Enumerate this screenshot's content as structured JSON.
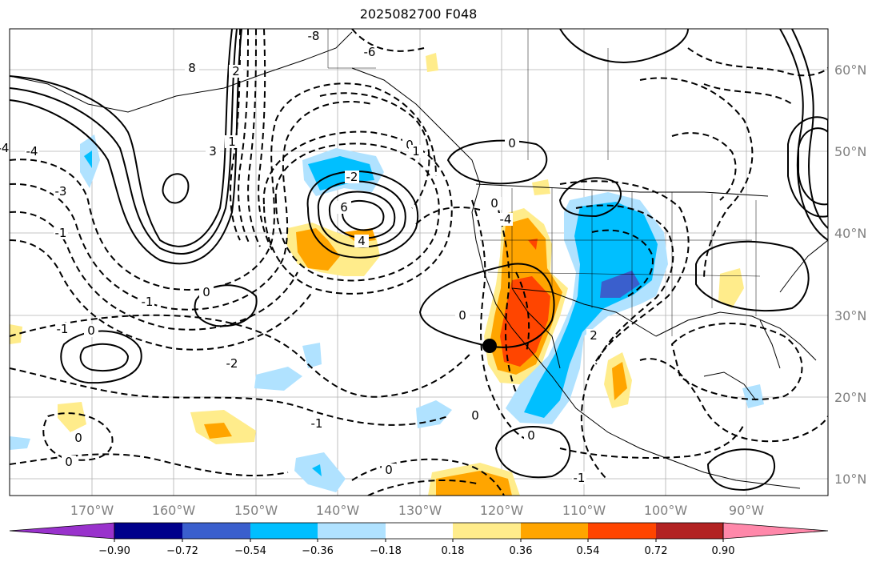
{
  "title": "2025082700 F048",
  "map": {
    "lon_labels": [
      "170°W",
      "160°W",
      "150°W",
      "140°W",
      "130°W",
      "120°W",
      "110°W",
      "100°W",
      "90°W"
    ],
    "lat_labels": [
      "60°N",
      "50°N",
      "40°N",
      "30°N",
      "20°N",
      "10°N"
    ],
    "contour_labels": [
      "-8",
      "8",
      "-6",
      "6",
      "-4",
      "4",
      "-3",
      "3",
      "-2",
      "2",
      "-1",
      "1",
      "0",
      "0",
      "0",
      "0",
      "0",
      "-1",
      "-2",
      "-1",
      "0",
      "1",
      "2",
      "0",
      "0",
      "-1",
      "-1",
      "0",
      "0",
      "0",
      "-4",
      "-4"
    ]
  },
  "colorbar": {
    "ticks": [
      "−0.90",
      "−0.72",
      "−0.54",
      "−0.36",
      "−0.18",
      "0.18",
      "0.36",
      "0.54",
      "0.72",
      "0.90"
    ],
    "colors": [
      "#9932cc",
      "#00008b",
      "#3a5fcd",
      "#00bfff",
      "#b0e2ff",
      "#ffffff",
      "#ffec8b",
      "#ffa500",
      "#ff4500",
      "#b22222",
      "#ff88aa"
    ]
  },
  "chart_data": {
    "type": "heatmap",
    "title": "2025082700 F048",
    "x_ticks": [
      "170°W",
      "160°W",
      "150°W",
      "140°W",
      "130°W",
      "120°W",
      "110°W",
      "100°W",
      "90°W"
    ],
    "y_ticks": [
      "60°N",
      "50°N",
      "40°N",
      "30°N",
      "20°N",
      "10°N"
    ],
    "lon_range": [
      -180,
      -80
    ],
    "lat_range": [
      8,
      65
    ],
    "levels": [
      -0.9,
      -0.72,
      -0.54,
      -0.36,
      -0.18,
      0.18,
      0.36,
      0.54,
      0.72,
      0.9
    ],
    "contour_levels": [
      -8,
      -6,
      -4,
      -3,
      -2,
      -1,
      0,
      1,
      2,
      3,
      4,
      6,
      8
    ],
    "marker": {
      "lon": -121,
      "lat": 26.5
    }
  }
}
